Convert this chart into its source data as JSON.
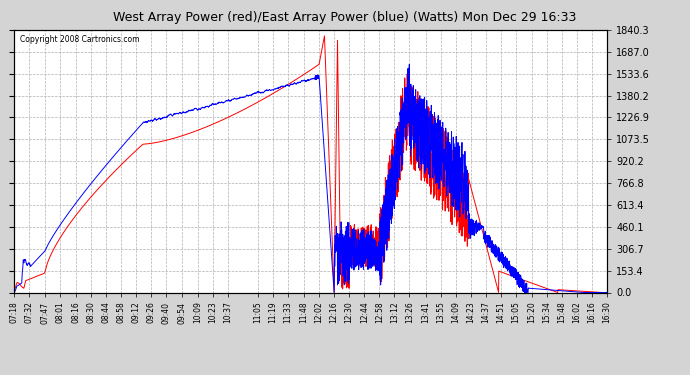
{
  "title": "West Array Power (red)/East Array Power (blue) (Watts) Mon Dec 29 16:33",
  "copyright": "Copyright 2008 Cartronics.com",
  "ylabel_right_ticks": [
    0.0,
    153.4,
    306.7,
    460.1,
    613.4,
    766.8,
    920.2,
    1073.5,
    1226.9,
    1380.2,
    1533.6,
    1687.0,
    1840.3
  ],
  "ymax": 1840.3,
  "ymin": 0.0,
  "red_color": "#ff0000",
  "blue_color": "#0000ff",
  "bg_color": "#d4d4d4",
  "plot_bg_color": "#ffffff",
  "grid_color": "#b0b0b0",
  "x_labels": [
    "07:18",
    "07:32",
    "07:47",
    "08:01",
    "08:16",
    "08:30",
    "08:44",
    "08:58",
    "09:12",
    "09:26",
    "09:40",
    "09:54",
    "10:09",
    "10:23",
    "10:37",
    "11:05",
    "11:19",
    "11:33",
    "11:48",
    "12:02",
    "12:16",
    "12:30",
    "12:44",
    "12:58",
    "13:12",
    "13:26",
    "13:41",
    "13:55",
    "14:09",
    "14:23",
    "14:37",
    "14:51",
    "15:05",
    "15:20",
    "15:34",
    "15:48",
    "16:02",
    "16:16",
    "16:30"
  ]
}
